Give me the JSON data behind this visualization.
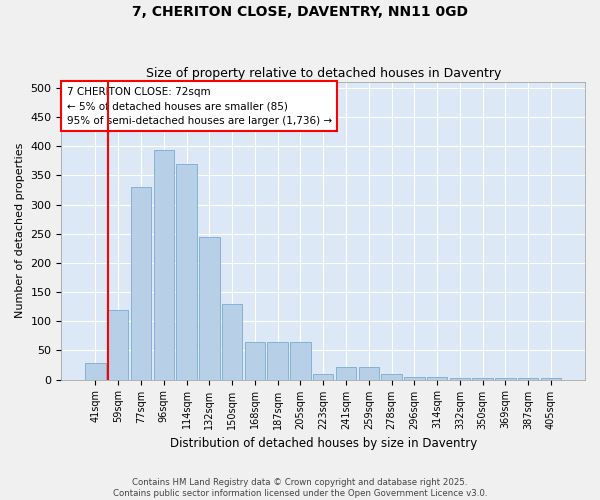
{
  "title": "7, CHERITON CLOSE, DAVENTRY, NN11 0GD",
  "subtitle": "Size of property relative to detached houses in Daventry",
  "xlabel": "Distribution of detached houses by size in Daventry",
  "ylabel": "Number of detached properties",
  "footer1": "Contains HM Land Registry data © Crown copyright and database right 2025.",
  "footer2": "Contains public sector information licensed under the Open Government Licence v3.0.",
  "bins": [
    "41sqm",
    "59sqm",
    "77sqm",
    "96sqm",
    "114sqm",
    "132sqm",
    "150sqm",
    "168sqm",
    "187sqm",
    "205sqm",
    "223sqm",
    "241sqm",
    "259sqm",
    "278sqm",
    "296sqm",
    "314sqm",
    "332sqm",
    "350sqm",
    "369sqm",
    "387sqm",
    "405sqm"
  ],
  "bar_values": [
    28,
    120,
    330,
    393,
    370,
    245,
    130,
    65,
    65,
    65,
    10,
    22,
    22,
    10,
    5,
    5,
    3,
    3,
    3,
    3,
    3
  ],
  "bar_color": "#b8cfe8",
  "bar_edge_color": "#7aaad0",
  "background_color": "#dce8f5",
  "grid_color": "#ffffff",
  "annotation_title": "7 CHERITON CLOSE: 72sqm",
  "annotation_line1": "← 5% of detached houses are smaller (85)",
  "annotation_line2": "95% of semi-detached houses are larger (1,736) →",
  "red_line_bin_index": 1,
  "ylim": [
    0,
    510
  ],
  "yticks": [
    0,
    50,
    100,
    150,
    200,
    250,
    300,
    350,
    400,
    450,
    500
  ]
}
